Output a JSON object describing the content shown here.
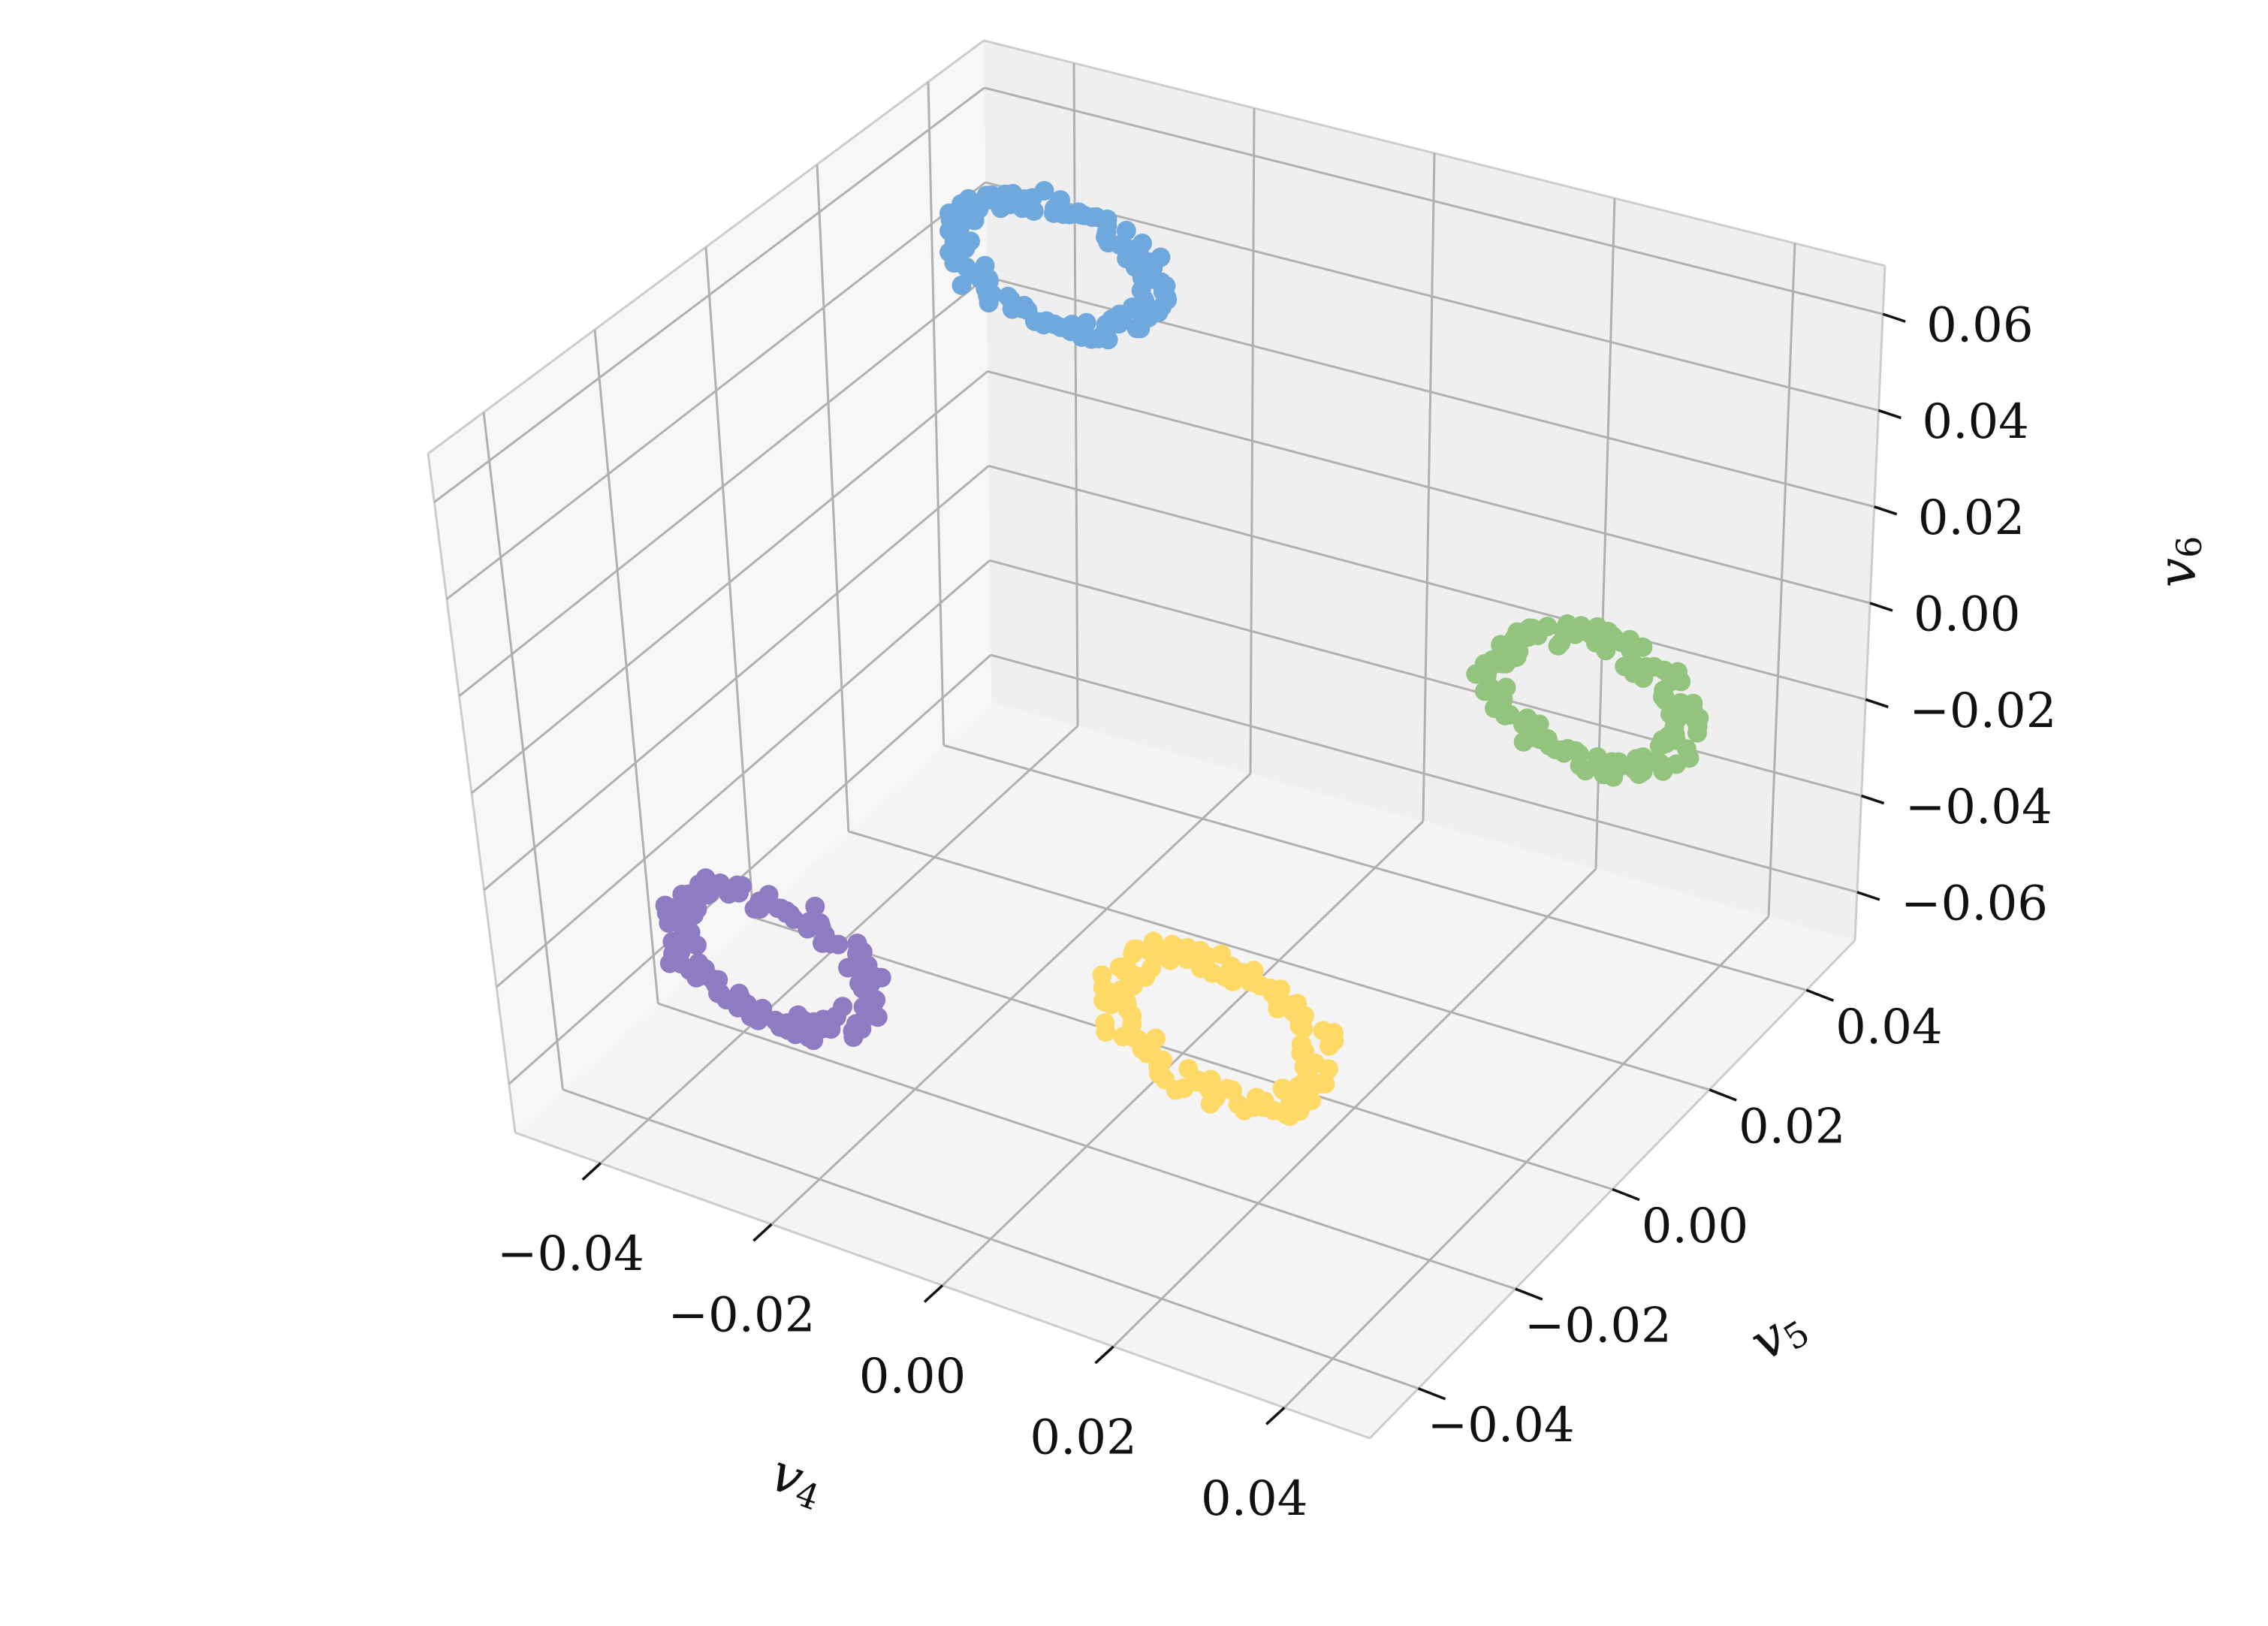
{
  "chart_data": {
    "type": "scatter",
    "projection": "3d",
    "title": "",
    "grid": true,
    "legend": "none",
    "xlabel": {
      "base": "v",
      "sub": "4"
    },
    "ylabel": {
      "base": "v",
      "sub": "5"
    },
    "zlabel": {
      "base": "v",
      "sub": "6"
    },
    "xlim": [
      -0.05,
      0.05
    ],
    "ylim": [
      -0.05,
      0.05
    ],
    "zlim": [
      -0.07,
      0.07
    ],
    "xticks": [
      -0.04,
      -0.02,
      0.0,
      0.02,
      0.04
    ],
    "yticks": [
      -0.04,
      -0.02,
      0.0,
      0.02,
      0.04
    ],
    "zticks": [
      -0.06,
      -0.04,
      -0.02,
      0.0,
      0.02,
      0.04,
      0.06
    ],
    "xtick_labels": [
      "−0.04",
      "−0.02",
      "0.00",
      "0.02",
      "0.04"
    ],
    "ytick_labels": [
      "−0.04",
      "−0.02",
      "0.00",
      "0.02",
      "0.04"
    ],
    "ztick_labels": [
      "−0.06",
      "−0.04",
      "−0.02",
      "0.00",
      "0.02",
      "0.04",
      "0.06"
    ],
    "colors": {
      "pane_left": "#f7f7f7",
      "pane_back": "#efefef",
      "pane_floor": "#f4f4f4",
      "grid": "#b0b0b0",
      "edge": "#cccccc"
    },
    "series": [
      {
        "color": "#6fa8dc",
        "center": [
          -0.03,
          0.03,
          0.05
        ],
        "radius": 0.011,
        "points": 120
      },
      {
        "color": "#93c47d",
        "center": [
          0.03,
          0.03,
          -0.01
        ],
        "radius": 0.011,
        "points": 120
      },
      {
        "color": "#8e7cc3",
        "center": [
          -0.03,
          -0.03,
          -0.04
        ],
        "radius": 0.011,
        "points": 120
      },
      {
        "color": "#ffd966",
        "center": [
          0.01,
          -0.01,
          -0.05
        ],
        "radius": 0.012,
        "points": 120
      }
    ]
  }
}
